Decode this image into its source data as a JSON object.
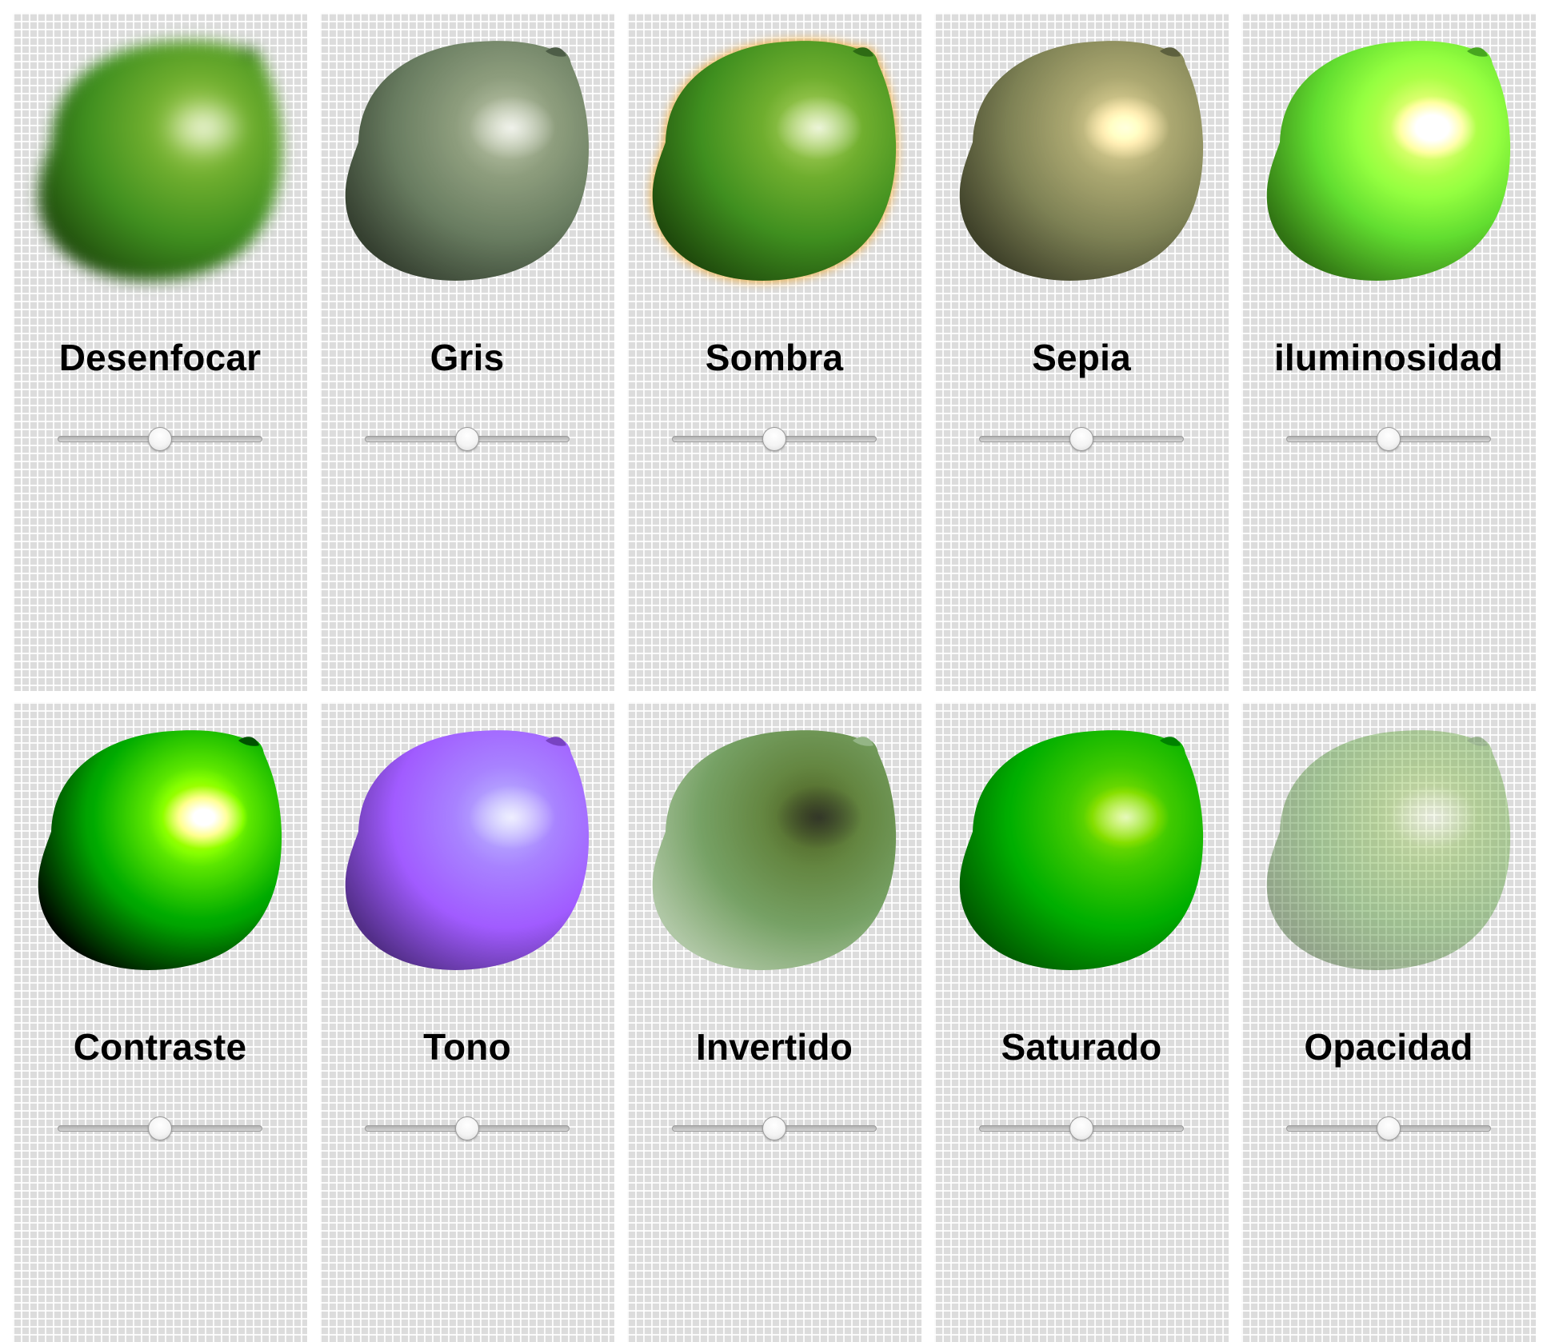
{
  "filters": [
    {
      "label": "Desenfocar",
      "value": 0.5,
      "effect": "blur"
    },
    {
      "label": "Gris",
      "value": 0.5,
      "effect": "grayscale"
    },
    {
      "label": "Sombra",
      "value": 0.5,
      "effect": "drop-shadow"
    },
    {
      "label": "Sepia",
      "value": 0.5,
      "effect": "sepia"
    },
    {
      "label": "iluminosidad",
      "value": 0.5,
      "effect": "brightness"
    },
    {
      "label": "Contraste",
      "value": 0.5,
      "effect": "contrast"
    },
    {
      "label": "Tono",
      "value": 0.5,
      "effect": "hue-rotate"
    },
    {
      "label": "Invertido",
      "value": 0.5,
      "effect": "invert"
    },
    {
      "label": "Saturado",
      "value": 0.5,
      "effect": "saturate"
    },
    {
      "label": "Opacidad",
      "value": 0.5,
      "effect": "opacity"
    }
  ],
  "colors": {
    "lime_base": "#3f8f1f",
    "lime_light": "#b9d96a",
    "lime_dark": "#1f4a0c",
    "shadow_glow": "#f5a623",
    "card_bg": "#dcdcdc"
  }
}
